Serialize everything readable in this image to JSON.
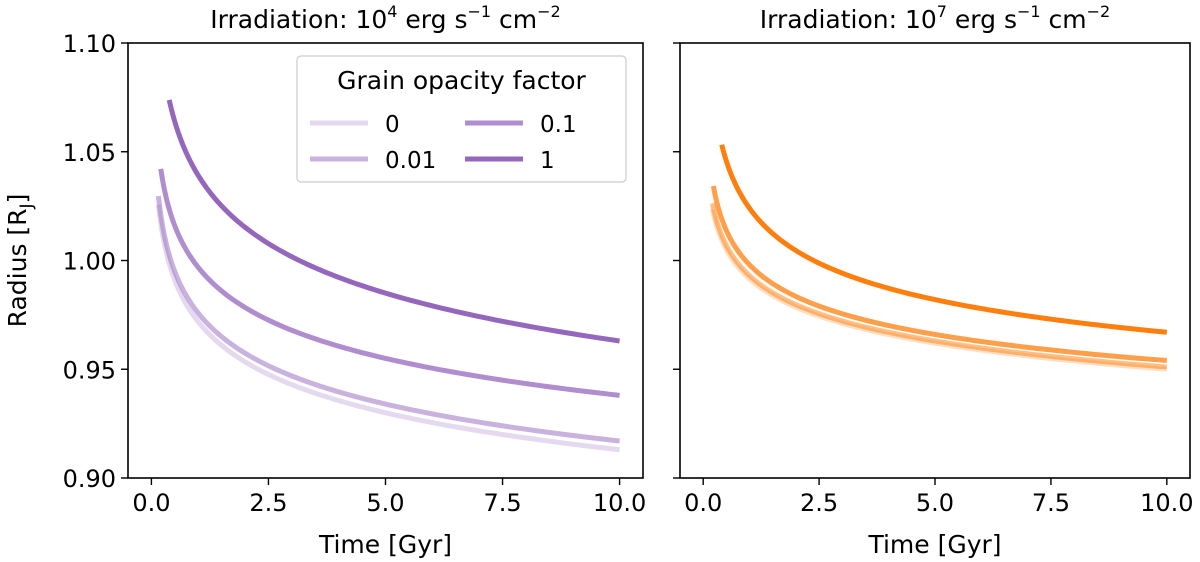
{
  "chart_data": [
    {
      "type": "line",
      "title": "Irradiation: 10^4 erg s^-1 cm^-2",
      "title_parts": {
        "prefix": "Irradiation: 10",
        "exp": "4",
        "unit1": " erg s",
        "unit1_exp": "−1",
        "unit2": " cm",
        "unit2_exp": "−2"
      },
      "xlabel": "Time [Gyr]",
      "ylabel": "Radius [R",
      "ylabel_sub": "J",
      "ylabel_end": "]",
      "xlim": [
        -0.5,
        10.5
      ],
      "ylim": [
        0.9,
        1.1
      ],
      "xticks": [
        0.0,
        2.5,
        5.0,
        7.5,
        10.0
      ],
      "xtick_labels": [
        "0.0",
        "2.5",
        "5.0",
        "7.5",
        "10.0"
      ],
      "yticks": [
        0.9,
        0.95,
        1.0,
        1.05,
        1.1
      ],
      "ytick_labels": [
        "0.90",
        "0.95",
        "1.00",
        "1.05",
        "1.10"
      ],
      "show_ytick_labels": true,
      "legend": {
        "title": "Grain opacity factor",
        "position": "top-right",
        "entries": [
          "0",
          "0.01",
          "0.1",
          "1"
        ]
      },
      "series": [
        {
          "name": "0",
          "color": "#9467bd",
          "alpha": 0.25,
          "x_start": 0.15,
          "x_end": 10.0,
          "r_end": 0.913,
          "r_mid": 0.93,
          "r_early": 0.963
        },
        {
          "name": "0.01",
          "color": "#9467bd",
          "alpha": 0.5,
          "x_start": 0.15,
          "x_end": 10.0,
          "r_end": 0.917,
          "r_mid": 0.934,
          "r_early": 0.968
        },
        {
          "name": "0.1",
          "color": "#9467bd",
          "alpha": 0.75,
          "x_start": 0.2,
          "x_end": 10.0,
          "r_end": 0.938,
          "r_mid": 0.955,
          "r_early": 0.995
        },
        {
          "name": "1",
          "color": "#9467bd",
          "alpha": 1.0,
          "x_start": 0.38,
          "x_end": 10.0,
          "r_end": 0.963,
          "r_mid": 0.985,
          "r_early": 1.034
        }
      ]
    },
    {
      "type": "line",
      "title": "Irradiation: 10^7 erg s^-1 cm^-2",
      "title_parts": {
        "prefix": "Irradiation: 10",
        "exp": "7",
        "unit1": " erg s",
        "unit1_exp": "−1",
        "unit2": " cm",
        "unit2_exp": "−2"
      },
      "xlabel": "Time [Gyr]",
      "xlim": [
        -0.5,
        10.5
      ],
      "ylim": [
        0.9,
        1.1
      ],
      "xticks": [
        0.0,
        2.5,
        5.0,
        7.5,
        10.0
      ],
      "xtick_labels": [
        "0.0",
        "2.5",
        "5.0",
        "7.5",
        "10.0"
      ],
      "yticks": [
        0.9,
        0.95,
        1.0,
        1.05,
        1.1
      ],
      "show_ytick_labels": false,
      "series": [
        {
          "name": "0",
          "color": "#ff7f0e",
          "alpha": 0.25,
          "x_start": 0.2,
          "x_end": 10.0,
          "r_end": 0.95,
          "r_mid": 0.962,
          "r_early": 0.991
        },
        {
          "name": "0.01",
          "color": "#ff7f0e",
          "alpha": 0.5,
          "x_start": 0.2,
          "x_end": 10.0,
          "r_end": 0.951,
          "r_mid": 0.963,
          "r_early": 0.993
        },
        {
          "name": "0.1",
          "color": "#ff7f0e",
          "alpha": 0.75,
          "x_start": 0.22,
          "x_end": 10.0,
          "r_end": 0.954,
          "r_mid": 0.966,
          "r_early": 0.998
        },
        {
          "name": "1",
          "color": "#ff7f0e",
          "alpha": 1.0,
          "x_start": 0.4,
          "x_end": 10.0,
          "r_end": 0.967,
          "r_mid": 0.982,
          "r_early": 1.024
        }
      ]
    }
  ]
}
